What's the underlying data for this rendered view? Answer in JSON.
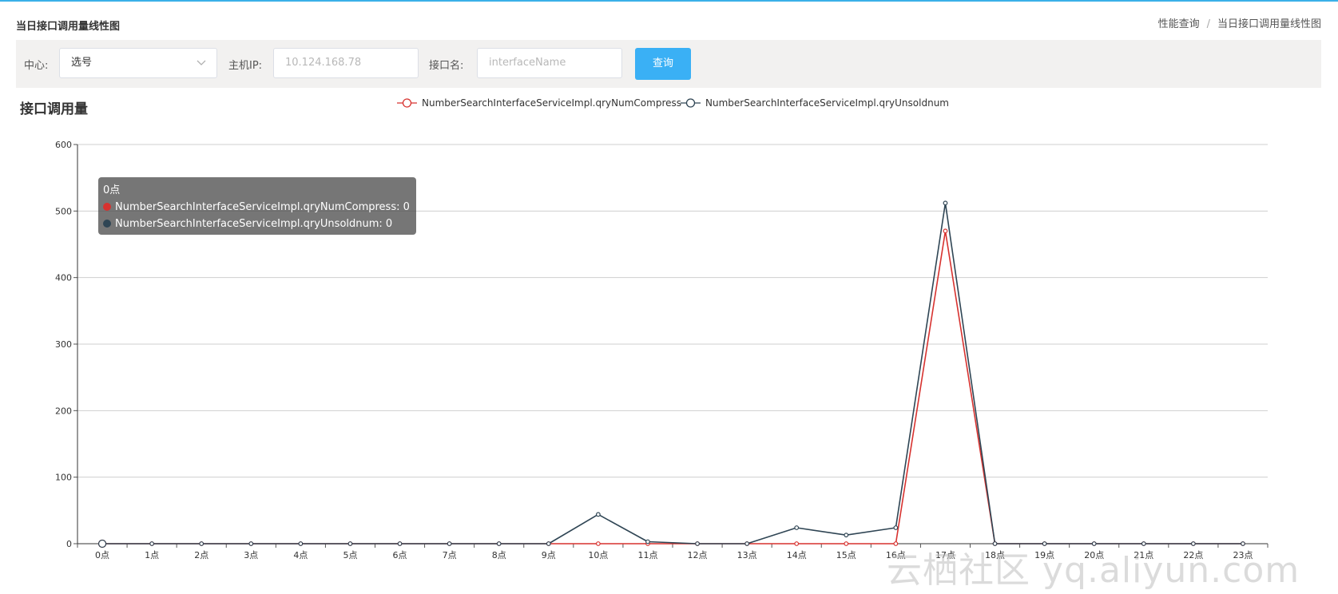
{
  "header": {
    "page_title": "当日接口调用量线性图",
    "breadcrumb": [
      "性能查询",
      "当日接口调用量线性图"
    ],
    "breadcrumb_sep": "/"
  },
  "filters": {
    "center_label": "中心:",
    "center_value": "选号",
    "host_label": "主机IP:",
    "host_placeholder": "10.124.168.78",
    "iface_label": "接口名:",
    "iface_placeholder": "interfaceName",
    "query_button": "查询"
  },
  "tooltip": {
    "title": "0点",
    "rows": [
      "NumberSearchInterfaceServiceImpl.qryNumCompress: 0",
      "NumberSearchInterfaceServiceImpl.qryUnsoldnum: 0"
    ]
  },
  "watermark": "云栖社区 yq.aliyun.com",
  "chart_data": {
    "type": "line",
    "title": "接口调用量",
    "categories": [
      "0点",
      "1点",
      "2点",
      "3点",
      "4点",
      "5点",
      "6点",
      "7点",
      "8点",
      "9点",
      "10点",
      "11点",
      "12点",
      "13点",
      "14点",
      "15点",
      "16点",
      "17点",
      "18点",
      "19点",
      "20点",
      "21点",
      "22点",
      "23点"
    ],
    "ylim": [
      0,
      600
    ],
    "yticks": [
      0,
      100,
      200,
      300,
      400,
      500,
      600
    ],
    "grid": true,
    "legend_position": "top-center",
    "series": [
      {
        "name": "NumberSearchInterfaceServiceImpl.qryNumCompress",
        "color": "#d7322f",
        "values": [
          0,
          0,
          0,
          0,
          0,
          0,
          0,
          0,
          0,
          0,
          0,
          0,
          0,
          0,
          0,
          0,
          0,
          470,
          0,
          0,
          0,
          0,
          0,
          0
        ]
      },
      {
        "name": "NumberSearchInterfaceServiceImpl.qryUnsoldnum",
        "color": "#2f4554",
        "values": [
          0,
          0,
          0,
          0,
          0,
          0,
          0,
          0,
          0,
          0,
          44,
          3,
          0,
          0,
          24,
          13,
          24,
          512,
          0,
          0,
          0,
          0,
          0,
          0
        ]
      }
    ]
  }
}
